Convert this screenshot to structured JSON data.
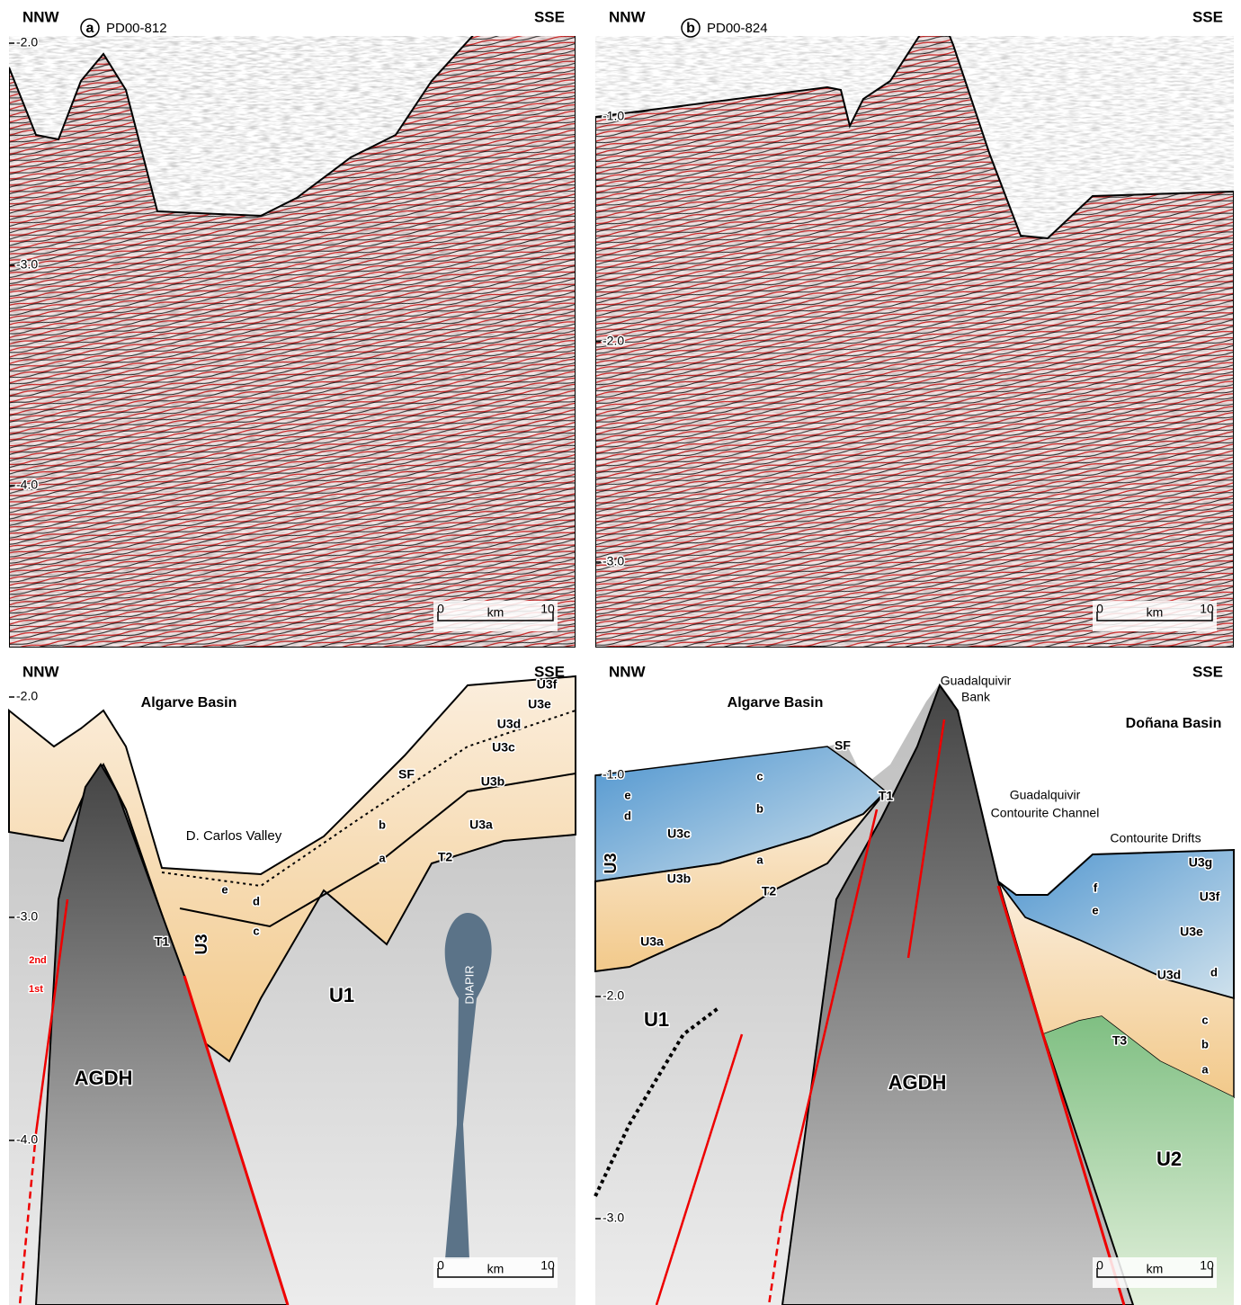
{
  "panels": [
    {
      "letter": "a",
      "profile": "PD00-812",
      "left_dir": "NNW",
      "right_dir": "SSE",
      "depth_labels": [
        "-2.0",
        "-3.0",
        "-4.0"
      ],
      "scale": {
        "start": "0",
        "unit": "km",
        "end": "10"
      },
      "labels": []
    },
    {
      "letter": "b",
      "profile": "PD00-824",
      "left_dir": "NNW",
      "right_dir": "SSE",
      "depth_labels": [
        "-1.0",
        "-2.0",
        "-3.0"
      ],
      "scale": {
        "start": "0",
        "unit": "km",
        "end": "10"
      },
      "labels": []
    },
    {
      "left_dir": "NNW",
      "right_dir": "SSE",
      "depth_labels": [
        "-2.0",
        "-3.0",
        "-4.0"
      ],
      "scale": {
        "start": "0",
        "unit": "km",
        "end": "10"
      },
      "labels": [
        "Algarve Basin",
        "D. Carlos Valley",
        "SF",
        "U3f",
        "U3e",
        "U3d",
        "U3c",
        "U3b",
        "U3a",
        "a",
        "b",
        "c",
        "d",
        "e",
        "T1",
        "T2",
        "U3",
        "U1",
        "AGDH",
        "DIAPIR",
        "2nd",
        "1st"
      ]
    },
    {
      "left_dir": "NNW",
      "right_dir": "SSE",
      "depth_labels": [
        "-1.0",
        "-2.0",
        "-3.0"
      ],
      "scale": {
        "start": "0",
        "unit": "km",
        "end": "10"
      },
      "labels": [
        "Algarve Basin",
        "SF",
        "Guadalquivir",
        "Bank",
        "Doñana Basin",
        "Guadalquivir",
        "Contourite Channel",
        "Contourite Drifts",
        "T1",
        "c",
        "e",
        "d",
        "b",
        "U3c",
        "a",
        "U3",
        "U3b",
        "T2",
        "U3a",
        "U1",
        "AGDH",
        "U3g",
        "f",
        "U3f",
        "e",
        "U3e",
        "U3d",
        "d",
        "c",
        "b",
        "a",
        "T3",
        "U2"
      ]
    }
  ]
}
